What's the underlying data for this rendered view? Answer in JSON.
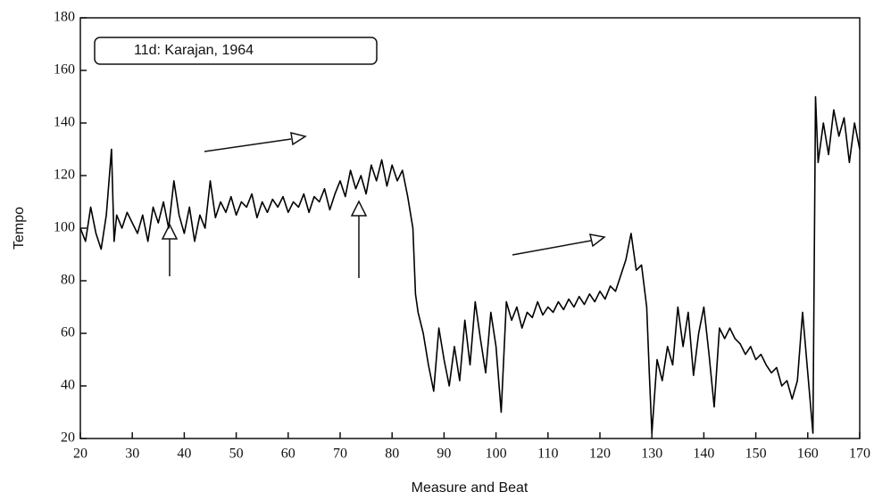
{
  "chart_data": {
    "type": "line",
    "annotation": "11d: Karajan, 1964",
    "xlabel": "Measure and Beat",
    "ylabel": "Tempo",
    "xlim": [
      20,
      170
    ],
    "ylim": [
      20,
      180
    ],
    "xticks": [
      20,
      30,
      40,
      50,
      60,
      70,
      80,
      90,
      100,
      110,
      120,
      130,
      140,
      150,
      160,
      170
    ],
    "yticks": [
      20,
      40,
      60,
      80,
      100,
      120,
      140,
      160,
      180
    ],
    "x": [
      20,
      21,
      22,
      23,
      24,
      25,
      26,
      26.5,
      27,
      28,
      29,
      30,
      31,
      32,
      33,
      34,
      35,
      36,
      37,
      38,
      39,
      40,
      41,
      42,
      43,
      44,
      45,
      46,
      47,
      48,
      49,
      50,
      51,
      52,
      53,
      54,
      55,
      56,
      57,
      58,
      59,
      60,
      61,
      62,
      63,
      64,
      65,
      66,
      67,
      68,
      69,
      70,
      71,
      72,
      73,
      74,
      75,
      76,
      77,
      78,
      79,
      80,
      81,
      82,
      83,
      84,
      84.5,
      85,
      86,
      87,
      88,
      89,
      90,
      91,
      92,
      93,
      94,
      95,
      96,
      97,
      98,
      99,
      100,
      101,
      102,
      103,
      104,
      105,
      106,
      107,
      108,
      109,
      110,
      111,
      112,
      113,
      114,
      115,
      116,
      117,
      118,
      119,
      120,
      121,
      122,
      123,
      124,
      125,
      126,
      127,
      128,
      129,
      129.5,
      130,
      131,
      132,
      133,
      134,
      135,
      136,
      137,
      138,
      139,
      140,
      141,
      142,
      143,
      144,
      145,
      146,
      147,
      148,
      149,
      150,
      151,
      152,
      153,
      154,
      155,
      156,
      157,
      158,
      159,
      160,
      161,
      161.5,
      162,
      163,
      164,
      165,
      166,
      167,
      168,
      169,
      170
    ],
    "series": [
      {
        "color": "#000000",
        "values": [
          100,
          95,
          108,
          98,
          92,
          105,
          130,
          95,
          105,
          100,
          106,
          102,
          98,
          105,
          95,
          108,
          102,
          110,
          100,
          118,
          105,
          98,
          108,
          95,
          105,
          100,
          118,
          104,
          110,
          106,
          112,
          105,
          110,
          108,
          113,
          104,
          110,
          106,
          111,
          108,
          112,
          106,
          110,
          108,
          113,
          106,
          112,
          110,
          115,
          107,
          113,
          118,
          112,
          122,
          115,
          120,
          113,
          124,
          118,
          126,
          116,
          124,
          118,
          122,
          112,
          100,
          75,
          68,
          60,
          48,
          38,
          62,
          50,
          40,
          55,
          42,
          65,
          48,
          72,
          58,
          45,
          68,
          55,
          30,
          72,
          65,
          70,
          62,
          68,
          66,
          72,
          67,
          70,
          68,
          72,
          69,
          73,
          70,
          74,
          71,
          75,
          72,
          76,
          73,
          78,
          76,
          82,
          88,
          98,
          84,
          86,
          70,
          45,
          22,
          50,
          42,
          55,
          48,
          70,
          55,
          68,
          44,
          60,
          70,
          52,
          32,
          62,
          58,
          62,
          58,
          56,
          52,
          55,
          50,
          52,
          48,
          45,
          47,
          40,
          42,
          35,
          42,
          68,
          45,
          22,
          150,
          125,
          140,
          128,
          145,
          135,
          142,
          125,
          140,
          130
        ]
      }
    ]
  }
}
